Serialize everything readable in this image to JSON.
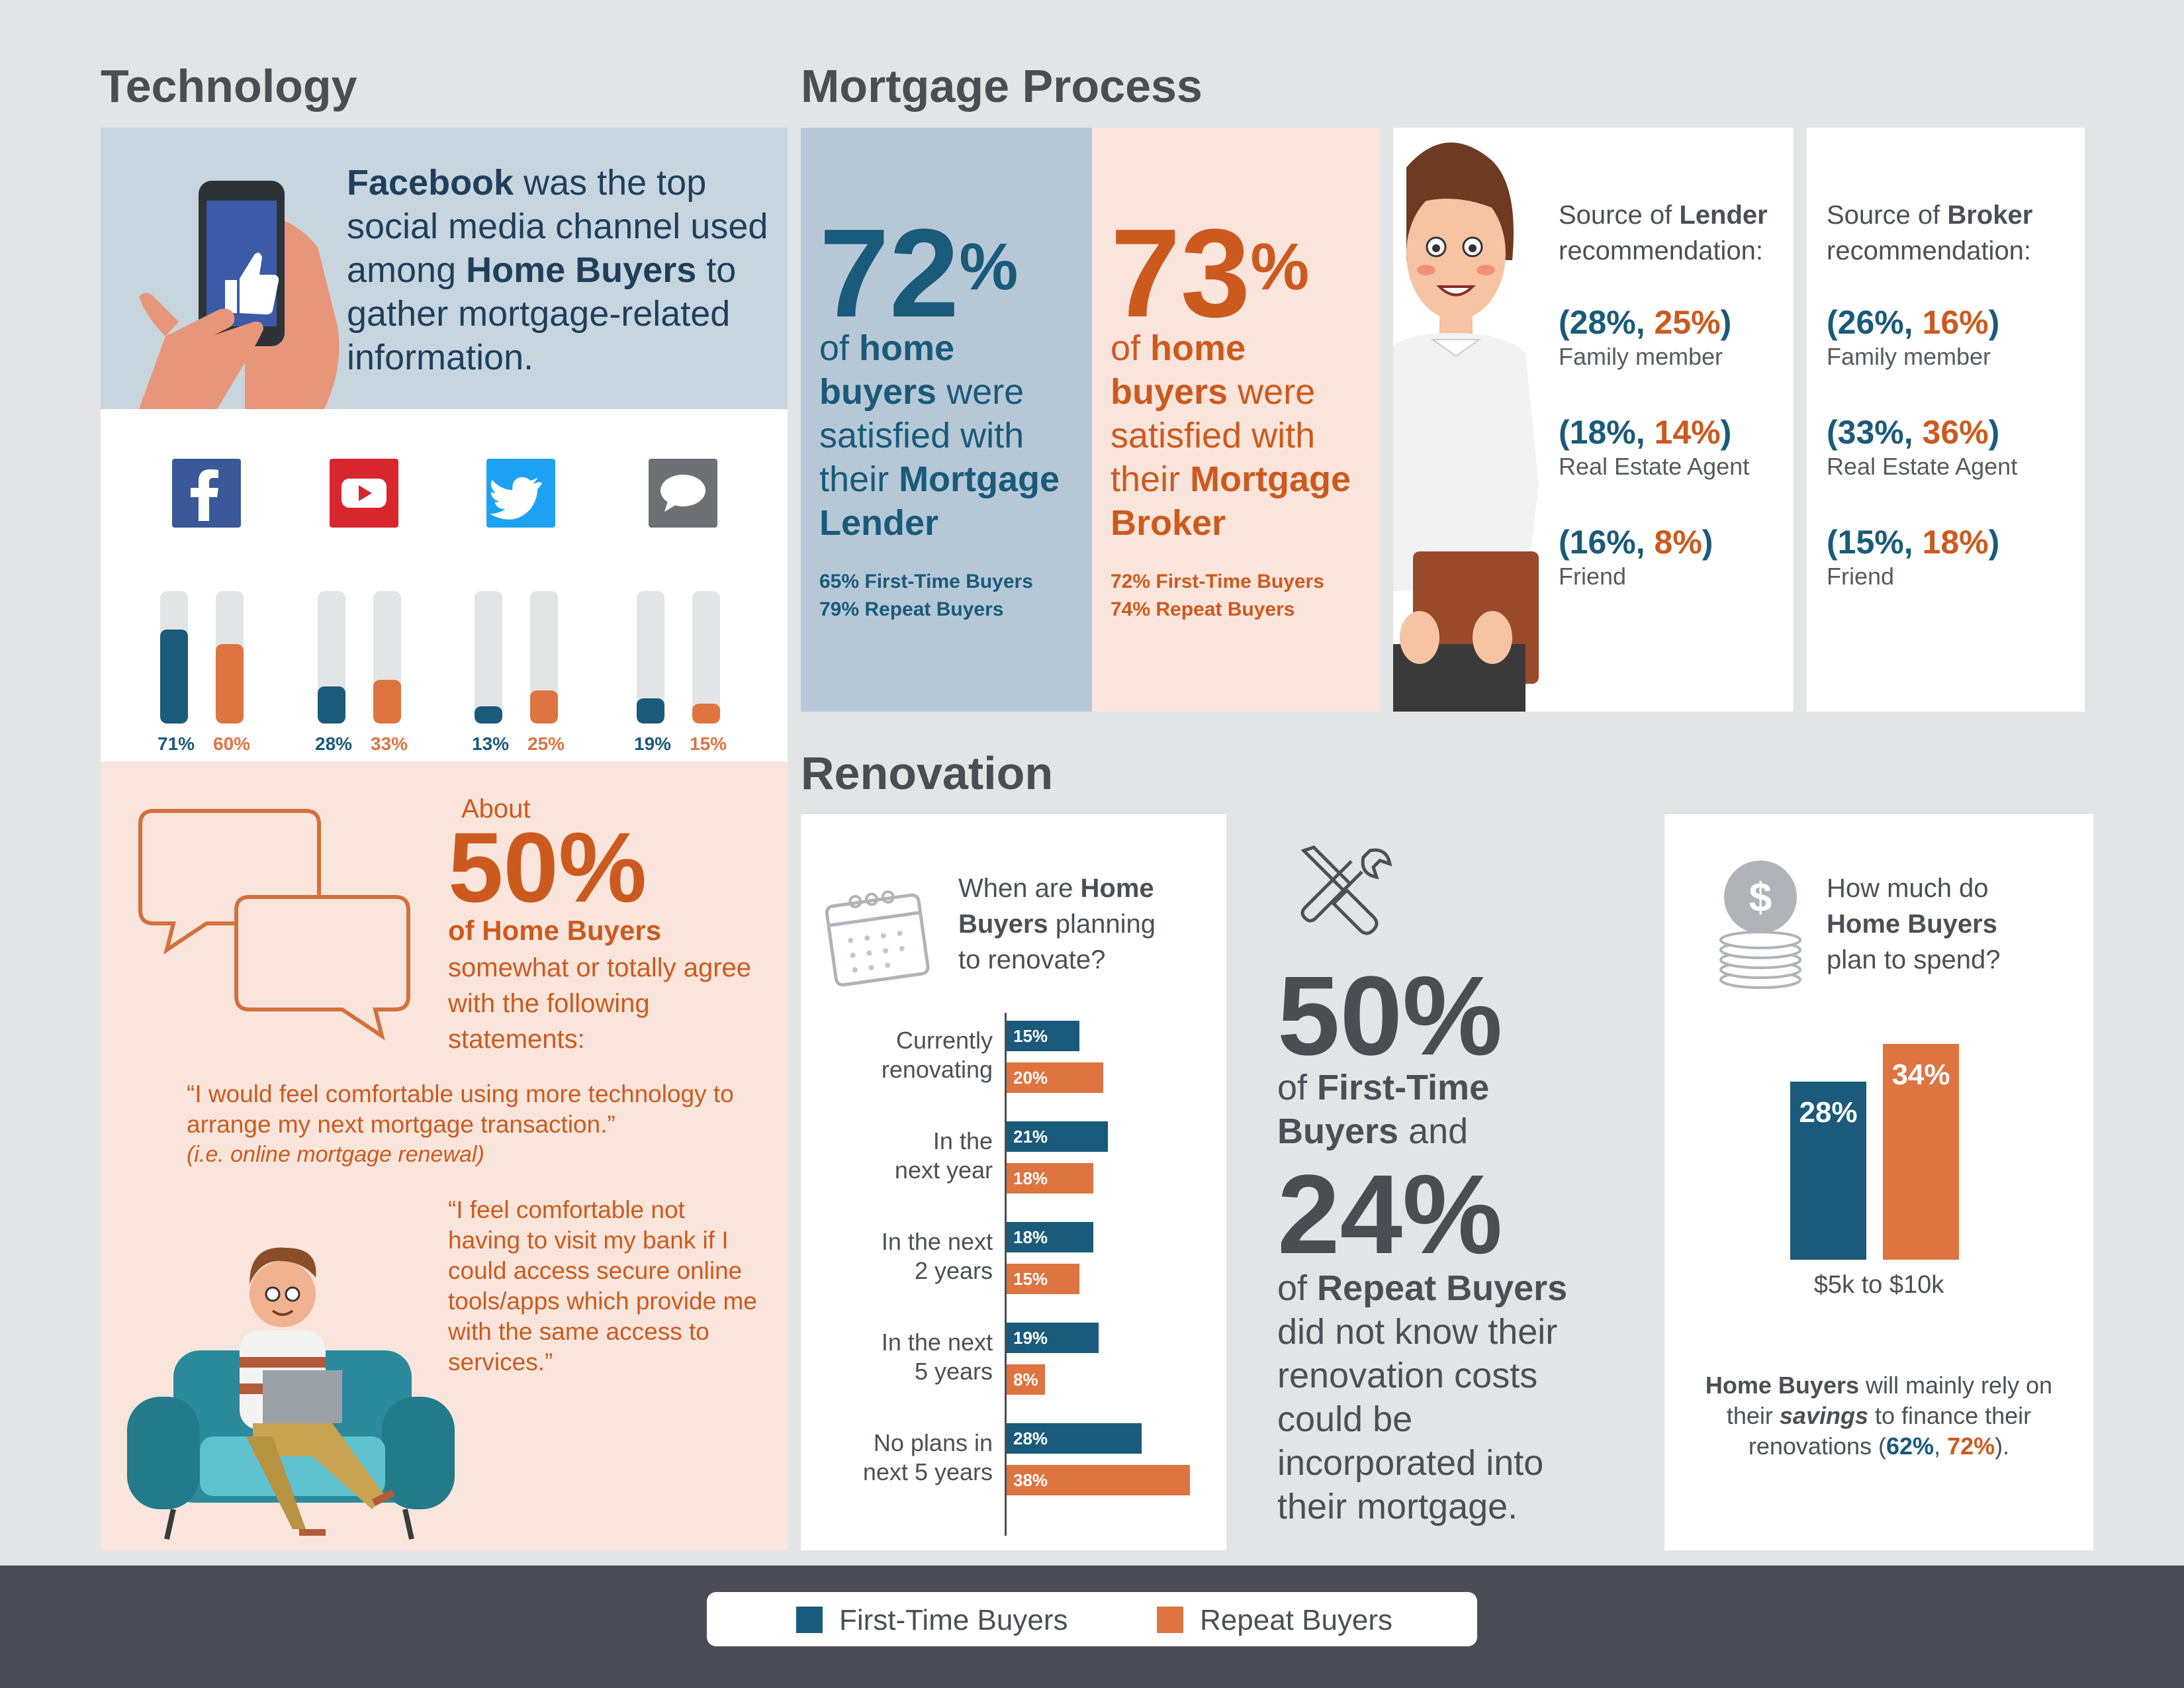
{
  "colors": {
    "first_time": "#1a5a7a",
    "repeat": "#de7440",
    "blue_bg": "#b6c8d6",
    "peach_bg": "#fae5dc"
  },
  "technology": {
    "heading": "Technology",
    "fb_text": {
      "brand": "Facebook",
      "t1": " was the top social media channel used among ",
      "bold": "Home Buyers",
      "t2": " to gather mortgage-related information."
    },
    "channels": [
      {
        "icon": "facebook-icon",
        "first_time": 71,
        "repeat": 60,
        "first_label": "71%",
        "repeat_label": "60%"
      },
      {
        "icon": "youtube-icon",
        "first_time": 28,
        "repeat": 33,
        "first_label": "28%",
        "repeat_label": "33%"
      },
      {
        "icon": "twitter-icon",
        "first_time": 13,
        "repeat": 25,
        "first_label": "13%",
        "repeat_label": "25%"
      },
      {
        "icon": "chat-icon",
        "first_time": 19,
        "repeat": 15,
        "first_label": "19%",
        "repeat_label": "15%"
      }
    ],
    "agree": {
      "about": "About",
      "pct": "50%",
      "of": "of Home Buyers",
      "rest": "somewhat or totally agree with the following statements:",
      "quote1": "“I would feel comfortable using more technology to arrange my next mortgage transaction.”",
      "quote1_note": "(i.e. online mortgage renewal)",
      "quote2": "“I feel comfortable not having to visit my bank if I could access secure online tools/apps which provide me with the same access to services.”"
    }
  },
  "mortgage": {
    "heading": "Mortgage Process",
    "lender": {
      "num": "72",
      "sup": "%",
      "of": "of ",
      "home": "home",
      "buyers": "buyers",
      "were": " were satisfied with their ",
      "mort": "Mortgage",
      "kind": "Lender",
      "sub1": "65% First-Time Buyers",
      "sub2": "79% Repeat Buyers"
    },
    "broker": {
      "num": "73",
      "sup": "%",
      "of": "of ",
      "home": "home",
      "buyers": "buyers",
      "were": " were satisfied with their ",
      "mort": "Mortgage",
      "kind": "Broker",
      "sub1": "72% First-Time Buyers",
      "sub2": "74% Repeat Buyers"
    },
    "lender_src": {
      "t1": "Source of ",
      "bold": "Lender",
      "t2": "recommendation:",
      "items": [
        {
          "a": "28%",
          "b": "25%",
          "label": "Family member"
        },
        {
          "a": "18%",
          "b": "14%",
          "label": "Real Estate Agent"
        },
        {
          "a": "16%",
          "b": "8%",
          "label": "Friend"
        }
      ]
    },
    "broker_src": {
      "t1": "Source of ",
      "bold": "Broker",
      "t2": "recommendation:",
      "items": [
        {
          "a": "26%",
          "b": "16%",
          "label": "Family member"
        },
        {
          "a": "33%",
          "b": "36%",
          "label": "Real Estate Agent"
        },
        {
          "a": "15%",
          "b": "18%",
          "label": "Friend"
        }
      ]
    }
  },
  "renovation": {
    "heading": "Renovation",
    "when": {
      "q1": "When are ",
      "q_bold1": "Home",
      "q_bold2": "Buyers",
      "q2": " planning",
      "q3": "to renovate?",
      "rows": [
        {
          "l1": "Currently",
          "l2": "renovating",
          "first": 15,
          "repeat": 20,
          "fl": "15%",
          "rl": "20%"
        },
        {
          "l1": "In the",
          "l2": "next year",
          "first": 21,
          "repeat": 18,
          "fl": "21%",
          "rl": "18%"
        },
        {
          "l1": "In the next",
          "l2": "2 years",
          "first": 18,
          "repeat": 15,
          "fl": "18%",
          "rl": "15%"
        },
        {
          "l1": "In the next",
          "l2": "5 years",
          "first": 19,
          "repeat": 8,
          "fl": "19%",
          "rl": "8%"
        },
        {
          "l1": "No plans in",
          "l2": "next 5 years",
          "first": 28,
          "repeat": 38,
          "fl": "28%",
          "rl": "38%"
        }
      ]
    },
    "cost": {
      "pct1": "50%",
      "of1": "of ",
      "ft": "First-Time",
      "buyers_and": "Buyers",
      "and": " and",
      "pct2": "24%",
      "of2": "of ",
      "rb": "Repeat Buyers",
      "rest": "did not know their renovation costs could be incorporated into their mortgage."
    },
    "spend": {
      "q1": "How much do",
      "q_bold": "Home Buyers",
      "q2": "plan to spend?",
      "first": 28,
      "repeat": 34,
      "fl": "28%",
      "rl": "34%",
      "range": "$5k to $10k",
      "n_bold": "Home Buyers",
      "n1": " will mainly rely on their ",
      "n_savings": "savings",
      "n2": " to finance their renovations (",
      "n_a": "62%",
      "n_comma": ", ",
      "n_b": "72%",
      "n_end": ")."
    }
  },
  "legend": {
    "first": "First-Time Buyers",
    "repeat": "Repeat Buyers"
  }
}
